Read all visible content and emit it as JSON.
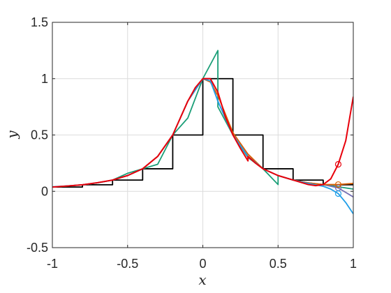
{
  "chart_data": {
    "type": "line",
    "title": "",
    "xlabel": "x",
    "ylabel": "y",
    "xlim": [
      -1,
      1
    ],
    "ylim": [
      -0.5,
      1.5
    ],
    "x_ticks": [
      -1,
      -0.5,
      0,
      0.5,
      1
    ],
    "x_tick_labels": [
      "-1",
      "-0.5",
      "0",
      "0.5",
      "1"
    ],
    "y_ticks": [
      -0.5,
      0,
      0.5,
      1,
      1.5
    ],
    "y_tick_labels": [
      "-0.5",
      "0",
      "0.5",
      "1",
      "1.5"
    ],
    "grid": true,
    "legend": "none",
    "colors": {
      "black": "#000000",
      "green": "#1a9e77",
      "purple": "#7570b3",
      "orange": "#d95f02",
      "blue": "#1f9ee8",
      "red": "#e8000b",
      "axis": "#262626",
      "grid": "#dcdcdc"
    },
    "series": [
      {
        "color": "black",
        "style": "step",
        "x": [
          -1,
          -0.8,
          -0.6,
          -0.4,
          -0.2,
          0,
          0.2,
          0.4,
          0.6,
          0.8,
          1
        ],
        "y": [
          0.038,
          0.058,
          0.1,
          0.2,
          0.5,
          1.0,
          0.5,
          0.2,
          0.1,
          0.058,
          0.058
        ]
      },
      {
        "color": "green",
        "style": "line",
        "x": [
          -1,
          -0.9,
          -0.8,
          -0.7,
          -0.6,
          -0.5,
          -0.4,
          -0.3,
          -0.2,
          -0.1,
          0,
          0.1,
          0.1,
          0.2,
          0.3,
          0.4,
          0.5,
          0.5,
          0.6,
          0.7,
          0.8,
          0.9,
          1
        ],
        "y": [
          0.038,
          0.047,
          0.058,
          0.075,
          0.1,
          0.16,
          0.2,
          0.24,
          0.5,
          0.65,
          1.0,
          1.25,
          0.75,
          0.5,
          0.3,
          0.2,
          0.06,
          0.14,
          0.1,
          0.075,
          0.058,
          0.04,
          0.02
        ]
      },
      {
        "color": "purple",
        "style": "line",
        "x": [
          -1,
          -0.9,
          -0.8,
          -0.7,
          -0.6,
          -0.5,
          -0.4,
          -0.3,
          -0.2,
          -0.1,
          0,
          0.05,
          0.1,
          0.2,
          0.3,
          0.4,
          0.5,
          0.6,
          0.7,
          0.8,
          0.9,
          1
        ],
        "y": [
          0.038,
          0.047,
          0.058,
          0.075,
          0.1,
          0.14,
          0.2,
          0.31,
          0.5,
          0.8,
          1.0,
          1.0,
          0.8,
          0.5,
          0.31,
          0.2,
          0.14,
          0.1,
          0.075,
          0.06,
          0.03,
          -0.05
        ],
        "marker_x": 0.9,
        "marker_y": 0.03
      },
      {
        "color": "orange",
        "style": "line",
        "x": [
          -1,
          -0.9,
          -0.8,
          -0.7,
          -0.6,
          -0.5,
          -0.4,
          -0.3,
          -0.2,
          -0.1,
          0,
          0.05,
          0.1,
          0.2,
          0.3,
          0.4,
          0.5,
          0.6,
          0.7,
          0.8,
          0.9,
          1
        ],
        "y": [
          0.038,
          0.047,
          0.058,
          0.075,
          0.1,
          0.14,
          0.2,
          0.31,
          0.5,
          0.8,
          1.0,
          0.97,
          0.85,
          0.52,
          0.33,
          0.2,
          0.14,
          0.1,
          0.075,
          0.06,
          0.06,
          0.07
        ],
        "marker_x": 0.9,
        "marker_y": 0.06
      },
      {
        "color": "blue",
        "style": "line",
        "x": [
          -1,
          -0.9,
          -0.8,
          -0.7,
          -0.6,
          -0.5,
          -0.4,
          -0.3,
          -0.2,
          -0.1,
          0,
          0.05,
          0.1,
          0.2,
          0.3,
          0.4,
          0.5,
          0.6,
          0.7,
          0.8,
          0.85,
          0.9,
          0.95,
          1
        ],
        "y": [
          0.04,
          0.048,
          0.058,
          0.076,
          0.1,
          0.14,
          0.2,
          0.31,
          0.5,
          0.8,
          1.0,
          0.98,
          0.8,
          0.5,
          0.31,
          0.2,
          0.14,
          0.1,
          0.07,
          0.045,
          0.02,
          -0.02,
          -0.1,
          -0.2
        ],
        "marker_x": 0.9,
        "marker_y": -0.02
      },
      {
        "color": "red",
        "style": "line",
        "x": [
          -1,
          -0.9,
          -0.8,
          -0.7,
          -0.6,
          -0.5,
          -0.4,
          -0.3,
          -0.2,
          -0.1,
          -0.05,
          0,
          0.05,
          0.1,
          0.15,
          0.2,
          0.25,
          0.3,
          0.3,
          0.35,
          0.4,
          0.5,
          0.6,
          0.7,
          0.75,
          0.8,
          0.85,
          0.9,
          0.95,
          1
        ],
        "y": [
          0.038,
          0.047,
          0.058,
          0.077,
          0.1,
          0.14,
          0.2,
          0.31,
          0.5,
          0.8,
          0.92,
          1.0,
          1.0,
          0.88,
          0.66,
          0.5,
          0.38,
          0.27,
          0.31,
          0.25,
          0.2,
          0.14,
          0.1,
          0.06,
          0.05,
          0.06,
          0.11,
          0.24,
          0.45,
          0.84
        ],
        "marker_x": 0.9,
        "marker_y": 0.24
      }
    ]
  }
}
